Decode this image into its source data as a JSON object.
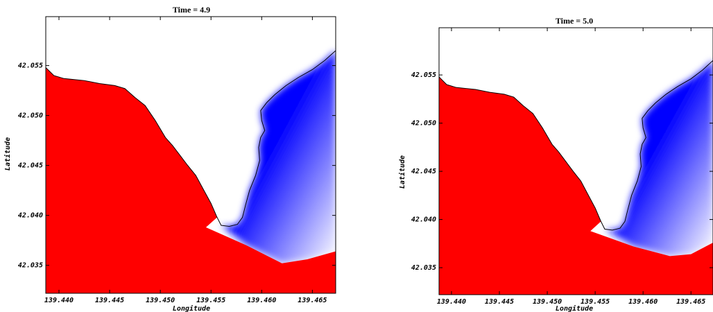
{
  "chart_data": [
    {
      "type": "heatmap",
      "title": "Time = 4.9",
      "xlabel": "Longitude",
      "ylabel": "Latitude",
      "xlim": [
        139.4387,
        139.4673
      ],
      "ylim": [
        42.0322,
        42.0599
      ],
      "x_ticks": [
        "139.440",
        "139.445",
        "139.450",
        "139.455",
        "139.460",
        "139.465"
      ],
      "y_ticks": [
        "42.035",
        "42.040",
        "42.045",
        "42.050",
        "42.055"
      ],
      "colors": {
        "positive": "#ff0000",
        "negative": "#0000ff",
        "zero": "#ffffff",
        "coastline": "#000000"
      },
      "coastline": [
        [
          139.4387,
          42.0548
        ],
        [
          139.4395,
          42.054
        ],
        [
          139.4405,
          42.0537
        ],
        [
          139.4415,
          42.0536
        ],
        [
          139.4425,
          42.0535
        ],
        [
          139.444,
          42.0532
        ],
        [
          139.4455,
          42.053
        ],
        [
          139.4465,
          42.0527
        ],
        [
          139.4475,
          42.0518
        ],
        [
          139.4485,
          42.051
        ],
        [
          139.4495,
          42.0495
        ],
        [
          139.4505,
          42.0478
        ],
        [
          139.4512,
          42.047
        ],
        [
          139.4518,
          42.0462
        ],
        [
          139.4527,
          42.045
        ],
        [
          139.4535,
          42.044
        ],
        [
          139.4543,
          42.0425
        ],
        [
          139.455,
          42.0412
        ],
        [
          139.4556,
          42.0398
        ],
        [
          139.456,
          42.039
        ],
        [
          139.4568,
          42.0389
        ],
        [
          139.4576,
          42.0391
        ],
        [
          139.4581,
          42.0398
        ],
        [
          139.4584,
          42.041
        ],
        [
          139.4588,
          42.0425
        ],
        [
          139.4594,
          42.044
        ],
        [
          139.4598,
          42.0455
        ],
        [
          139.4597,
          42.0468
        ],
        [
          139.4599,
          42.0478
        ],
        [
          139.4603,
          42.0485
        ],
        [
          139.46,
          42.0495
        ],
        [
          139.4599,
          42.0505
        ],
        [
          139.4605,
          42.0513
        ],
        [
          139.4613,
          42.0521
        ],
        [
          139.4624,
          42.053
        ],
        [
          139.4636,
          42.0538
        ],
        [
          139.465,
          42.0546
        ],
        [
          139.4662,
          42.0555
        ],
        [
          139.4673,
          42.0565
        ]
      ],
      "land_color": "positive",
      "sea_color": "negative",
      "wave_front": [
        [
          139.4387,
          42.0355
        ],
        [
          139.4545,
          42.0388
        ],
        [
          139.4585,
          42.037
        ],
        [
          139.462,
          42.0352
        ],
        [
          139.4645,
          42.0356
        ],
        [
          139.4673,
          42.0364
        ]
      ]
    },
    {
      "type": "heatmap",
      "title": "Time = 5.0",
      "xlabel": "Longitude",
      "ylabel": "Latitude",
      "xlim": [
        139.4387,
        139.4673
      ],
      "ylim": [
        42.0322,
        42.0599
      ],
      "x_ticks": [
        "139.440",
        "139.445",
        "139.450",
        "139.455",
        "139.460",
        "139.465"
      ],
      "y_ticks": [
        "42.035",
        "42.040",
        "42.045",
        "42.050",
        "42.055"
      ],
      "colors": {
        "positive": "#ff0000",
        "negative": "#0000ff",
        "zero": "#ffffff",
        "coastline": "#000000"
      },
      "coastline": [
        [
          139.4387,
          42.0548
        ],
        [
          139.4395,
          42.054
        ],
        [
          139.4405,
          42.0537
        ],
        [
          139.4415,
          42.0536
        ],
        [
          139.4425,
          42.0535
        ],
        [
          139.444,
          42.0532
        ],
        [
          139.4455,
          42.053
        ],
        [
          139.4465,
          42.0527
        ],
        [
          139.4475,
          42.0518
        ],
        [
          139.4485,
          42.051
        ],
        [
          139.4495,
          42.0495
        ],
        [
          139.4505,
          42.0478
        ],
        [
          139.4512,
          42.047
        ],
        [
          139.4518,
          42.0462
        ],
        [
          139.4527,
          42.045
        ],
        [
          139.4535,
          42.044
        ],
        [
          139.4543,
          42.0425
        ],
        [
          139.455,
          42.0412
        ],
        [
          139.4556,
          42.0398
        ],
        [
          139.456,
          42.039
        ],
        [
          139.4568,
          42.0389
        ],
        [
          139.4576,
          42.0391
        ],
        [
          139.4581,
          42.0398
        ],
        [
          139.4584,
          42.041
        ],
        [
          139.4588,
          42.0425
        ],
        [
          139.4594,
          42.044
        ],
        [
          139.4598,
          42.0455
        ],
        [
          139.4597,
          42.0468
        ],
        [
          139.4599,
          42.0478
        ],
        [
          139.4603,
          42.0485
        ],
        [
          139.46,
          42.0495
        ],
        [
          139.4599,
          42.0505
        ],
        [
          139.4605,
          42.0513
        ],
        [
          139.4613,
          42.0521
        ],
        [
          139.4624,
          42.053
        ],
        [
          139.4636,
          42.0538
        ],
        [
          139.465,
          42.0546
        ],
        [
          139.4662,
          42.0555
        ],
        [
          139.4673,
          42.0565
        ]
      ],
      "land_color": "positive",
      "sea_color": "negative",
      "wave_front": [
        [
          139.4387,
          42.0355
        ],
        [
          139.4545,
          42.0388
        ],
        [
          139.459,
          42.0372
        ],
        [
          139.4628,
          42.0362
        ],
        [
          139.465,
          42.0364
        ],
        [
          139.4673,
          42.0376
        ]
      ]
    }
  ]
}
